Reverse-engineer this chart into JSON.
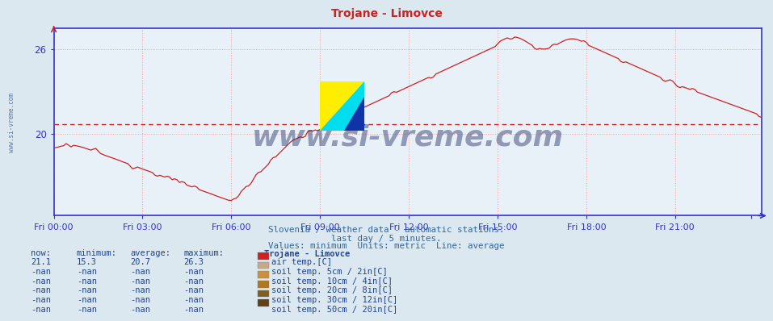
{
  "title": "Trojane - Limovce",
  "subtitle1": "Slovenia / weather data - automatic stations.",
  "subtitle2": "last day / 5 minutes.",
  "subtitle3": "Values: minimum  Units: metric  Line: average",
  "bg_color": "#dce8f0",
  "plot_bg_color": "#e8f0f8",
  "axis_color": "#3333cc",
  "grid_color": "#ee9999",
  "title_color": "#cc2222",
  "subtitle_color": "#336699",
  "watermark": "www.si-vreme.com",
  "ylim": [
    14.2,
    27.5
  ],
  "yticks": [
    20,
    26
  ],
  "xlim_max": 287,
  "xtick_positions": [
    0,
    36,
    72,
    108,
    144,
    180,
    216,
    252,
    283
  ],
  "xtick_labels": [
    "Fri 00:00",
    "Fri 03:00",
    "Fri 06:00",
    "Fri 09:00",
    "Fri 12:00",
    "Fri 15:00",
    "Fri 18:00",
    "Fri 21:00",
    ""
  ],
  "avg_line_y": 20.7,
  "avg_line_color": "#cc2222",
  "line_color": "#cc2222",
  "legend_entries": [
    {
      "label": "air temp.[C]",
      "color": "#cc2222"
    },
    {
      "label": "soil temp. 5cm / 2in[C]",
      "color": "#c8a888"
    },
    {
      "label": "soil temp. 10cm / 4in[C]",
      "color": "#c89040"
    },
    {
      "label": "soil temp. 20cm / 8in[C]",
      "color": "#b07820"
    },
    {
      "label": "soil temp. 30cm / 12in[C]",
      "color": "#806020"
    },
    {
      "label": "soil temp. 50cm / 20in[C]",
      "color": "#604018"
    }
  ],
  "legend_rows": [
    {
      "now": "21.1",
      "min": "15.3",
      "avg": "20.7",
      "max": "26.3",
      "idx": 0
    },
    {
      "now": "-nan",
      "min": "-nan",
      "avg": "-nan",
      "max": "-nan",
      "idx": 1
    },
    {
      "now": "-nan",
      "min": "-nan",
      "avg": "-nan",
      "max": "-nan",
      "idx": 2
    },
    {
      "now": "-nan",
      "min": "-nan",
      "avg": "-nan",
      "max": "-nan",
      "idx": 3
    },
    {
      "now": "-nan",
      "min": "-nan",
      "avg": "-nan",
      "max": "-nan",
      "idx": 4
    },
    {
      "now": "-nan",
      "min": "-nan",
      "avg": "-nan",
      "max": "-nan",
      "idx": 5
    }
  ]
}
